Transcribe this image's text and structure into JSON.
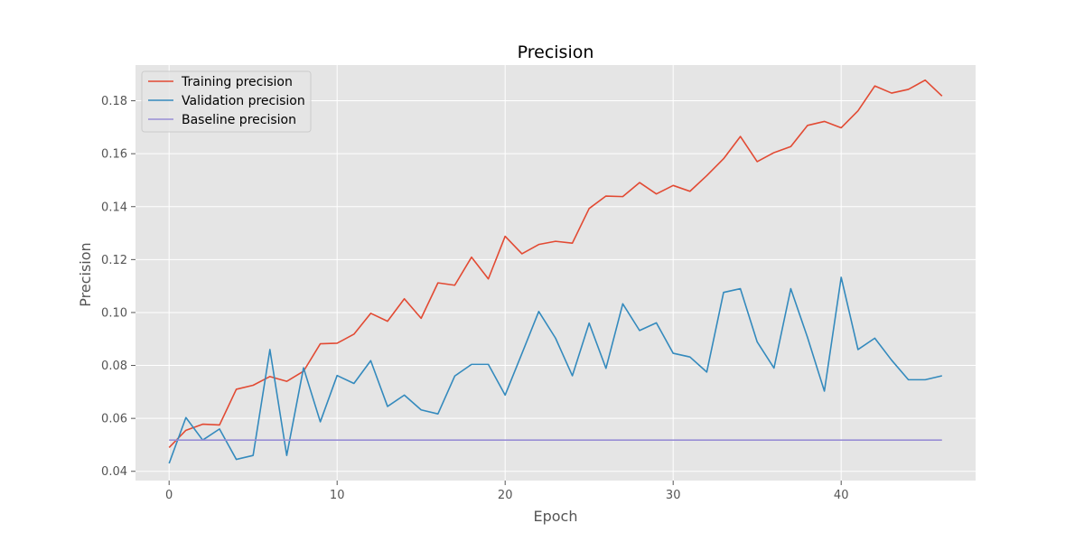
{
  "chart_data": {
    "type": "line",
    "title": "Precision",
    "xlabel": "Epoch",
    "ylabel": "Precision",
    "xlim": [
      -2,
      48
    ],
    "ylim": [
      0.0365,
      0.1935
    ],
    "xticks": [
      0,
      10,
      20,
      30,
      40
    ],
    "yticks": [
      0.04,
      0.06,
      0.08,
      0.1,
      0.12,
      0.14,
      0.16,
      0.18
    ],
    "ytick_labels": [
      "0.04",
      "0.06",
      "0.08",
      "0.10",
      "0.12",
      "0.14",
      "0.16",
      "0.18"
    ],
    "grid": true,
    "legend_position": "top-left",
    "x": [
      0,
      1,
      2,
      3,
      4,
      5,
      6,
      7,
      8,
      9,
      10,
      11,
      12,
      13,
      14,
      15,
      16,
      17,
      18,
      19,
      20,
      21,
      22,
      23,
      24,
      25,
      26,
      27,
      28,
      29,
      30,
      31,
      32,
      33,
      34,
      35,
      36,
      37,
      38,
      39,
      40,
      41,
      42,
      43,
      44,
      45,
      46
    ],
    "series": [
      {
        "name": "Training precision",
        "color": "#e24a33",
        "values": [
          0.049,
          0.0555,
          0.0578,
          0.0575,
          0.071,
          0.0725,
          0.0758,
          0.074,
          0.0778,
          0.0882,
          0.0884,
          0.0918,
          0.0997,
          0.0967,
          0.1052,
          0.0978,
          0.1112,
          0.1103,
          0.1209,
          0.1127,
          0.1288,
          0.1222,
          0.1257,
          0.1269,
          0.1262,
          0.1393,
          0.144,
          0.1438,
          0.1491,
          0.1448,
          0.148,
          0.1458,
          0.1517,
          0.1581,
          0.1665,
          0.157,
          0.1604,
          0.1627,
          0.1707,
          0.1722,
          0.1698,
          0.1762,
          0.1856,
          0.1829,
          0.1843,
          0.1878,
          0.1818
        ]
      },
      {
        "name": "Validation precision",
        "color": "#348abd",
        "values": [
          0.043,
          0.0603,
          0.0518,
          0.056,
          0.0445,
          0.046,
          0.086,
          0.046,
          0.0791,
          0.0587,
          0.0762,
          0.0732,
          0.0818,
          0.0645,
          0.0688,
          0.0632,
          0.0617,
          0.076,
          0.0804,
          0.0804,
          0.0688,
          0.0845,
          0.1004,
          0.0903,
          0.0761,
          0.096,
          0.0789,
          0.1033,
          0.0932,
          0.0961,
          0.0846,
          0.0832,
          0.0775,
          0.1076,
          0.109,
          0.0889,
          0.079,
          0.109,
          0.0905,
          0.0703,
          0.1133,
          0.086,
          0.0903,
          0.082,
          0.0746,
          0.0746,
          0.0761
        ]
      },
      {
        "name": "Baseline precision",
        "color": "#988ed5",
        "values": [
          0.0518,
          0.0518,
          0.0518,
          0.0518,
          0.0518,
          0.0518,
          0.0518,
          0.0518,
          0.0518,
          0.0518,
          0.0518,
          0.0518,
          0.0518,
          0.0518,
          0.0518,
          0.0518,
          0.0518,
          0.0518,
          0.0518,
          0.0518,
          0.0518,
          0.0518,
          0.0518,
          0.0518,
          0.0518,
          0.0518,
          0.0518,
          0.0518,
          0.0518,
          0.0518,
          0.0518,
          0.0518,
          0.0518,
          0.0518,
          0.0518,
          0.0518,
          0.0518,
          0.0518,
          0.0518,
          0.0518,
          0.0518,
          0.0518,
          0.0518,
          0.0518,
          0.0518,
          0.0518,
          0.0518
        ]
      }
    ]
  }
}
